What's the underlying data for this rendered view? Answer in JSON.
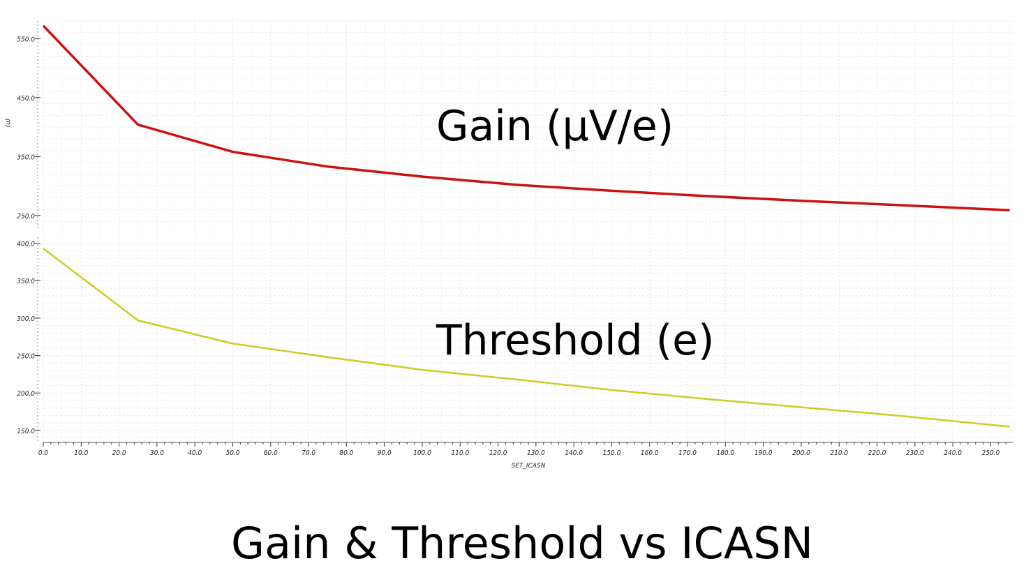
{
  "chart_data": {
    "type": "line",
    "title": "Gain & Threshold vs ICASN",
    "xlabel": "SET_ICASN",
    "xlim": [
      0,
      256
    ],
    "xticks": [
      "0.0",
      "10.0",
      "20.0",
      "30.0",
      "40.0",
      "50.0",
      "60.0",
      "70.0",
      "80.0",
      "90.0",
      "100.0",
      "110.0",
      "120.0",
      "130.0",
      "140.0",
      "150.0",
      "160.0",
      "170.0",
      "180.0",
      "190.0",
      "200.0",
      "210.0",
      "220.0",
      "230.0",
      "240.0",
      "250.0"
    ],
    "panels": [
      {
        "ylabel": "(u)",
        "ylim": [
          225,
          580
        ],
        "yticks": [
          "550.0",
          "450.0",
          "350.0",
          "250.0"
        ],
        "annotation": "Gain (µV/e)",
        "series": [
          {
            "color": "#cc1111",
            "x": [
              0,
              25,
              50,
              75,
              100,
              125,
              150,
              175,
              200,
              225,
              255
            ],
            "y": [
              572,
              404,
              358,
              333,
              316,
              302,
              292,
              283,
              275,
              268,
              259
            ]
          }
        ]
      },
      {
        "ylabel": "",
        "ylim": [
          135,
          408
        ],
        "yticks": [
          "400.0",
          "350.0",
          "300.0",
          "250.0",
          "200.0",
          "150.0"
        ],
        "annotation": "Threshold (e)",
        "series": [
          {
            "color": "#cccc22",
            "x": [
              0,
              25,
              50,
              75,
              100,
              125,
              150,
              175,
              200,
              225,
              255
            ],
            "y": [
              393,
              297,
              266,
              248,
              231,
              218,
              204,
              192,
              181,
              170,
              155
            ]
          }
        ]
      }
    ]
  }
}
